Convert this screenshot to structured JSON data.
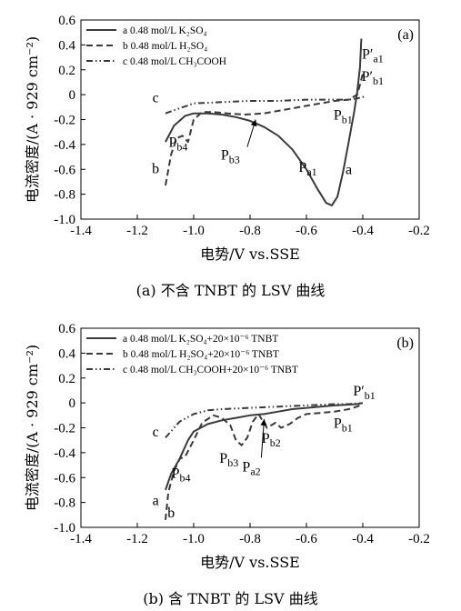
{
  "chart_data": [
    {
      "type": "line",
      "panel_label": "(a)",
      "caption": "(a) 不含 TNBT 的 LSV 曲线",
      "xlabel": "电势/V vs.SSE",
      "ylabel": "电流密度/(A · 929 cm⁻²)",
      "xlim": [
        -1.4,
        -0.2
      ],
      "ylim": [
        -1.0,
        0.6
      ],
      "xticks": [
        "-1.4",
        "-1.2",
        "-1.0",
        "-0.8",
        "-0.6",
        "-0.4",
        "-0.2"
      ],
      "yticks": [
        "-1.0",
        "-0.8",
        "-0.6",
        "-0.4",
        "-0.2",
        "0",
        "0.2",
        "0.4",
        "0.6"
      ],
      "series": [
        {
          "id": "a",
          "name": "a 0.48 mol/L K₂SO₄",
          "style": "solid",
          "x": [
            -1.1,
            -1.07,
            -1.03,
            -1.0,
            -0.95,
            -0.9,
            -0.85,
            -0.8,
            -0.75,
            -0.7,
            -0.65,
            -0.6,
            -0.56,
            -0.53,
            -0.51,
            -0.49,
            -0.47,
            -0.45,
            -0.43,
            -0.42,
            -0.41,
            -0.405
          ],
          "y": [
            -0.38,
            -0.25,
            -0.17,
            -0.15,
            -0.15,
            -0.16,
            -0.18,
            -0.21,
            -0.26,
            -0.33,
            -0.44,
            -0.6,
            -0.76,
            -0.87,
            -0.89,
            -0.82,
            -0.62,
            -0.38,
            -0.13,
            0.02,
            0.22,
            0.45
          ]
        },
        {
          "id": "b",
          "name": "b 0.48 mol/L H₂SO₄",
          "style": "dashed",
          "x": [
            -1.1,
            -1.08,
            -1.06,
            -1.04,
            -1.02,
            -1.0,
            -0.97,
            -0.93,
            -0.88,
            -0.82,
            -0.75,
            -0.7,
            -0.65,
            -0.6,
            -0.55,
            -0.5,
            -0.45,
            -0.42,
            -0.41,
            -0.4
          ],
          "y": [
            -0.73,
            -0.48,
            -0.35,
            -0.33,
            -0.38,
            -0.2,
            -0.14,
            -0.14,
            -0.15,
            -0.16,
            -0.15,
            -0.13,
            -0.11,
            -0.09,
            -0.07,
            -0.05,
            -0.04,
            0.0,
            0.08,
            0.17
          ]
        },
        {
          "id": "c",
          "name": "c 0.48 mol/L CH₃COOH",
          "style": "dashdot",
          "x": [
            -1.1,
            -1.05,
            -1.0,
            -0.9,
            -0.8,
            -0.7,
            -0.6,
            -0.5,
            -0.45,
            -0.42,
            -0.4,
            -0.39
          ],
          "y": [
            -0.15,
            -0.11,
            -0.07,
            -0.06,
            -0.05,
            -0.05,
            -0.04,
            -0.04,
            -0.04,
            -0.03,
            -0.02,
            0.0
          ]
        }
      ],
      "annotations": [
        {
          "base": "P",
          "sub": "a1",
          "prime": true,
          "x": -0.365,
          "y": 0.29
        },
        {
          "base": "P",
          "sub": "b1",
          "prime": true,
          "x": -0.365,
          "y": 0.11
        },
        {
          "base": "P",
          "sub": "b1",
          "prime": false,
          "x": -0.47,
          "y": -0.2
        },
        {
          "base": "P",
          "sub": "b4",
          "prime": false,
          "x": -1.055,
          "y": -0.42
        },
        {
          "base": "P",
          "sub": "b3",
          "prime": false,
          "x": -0.87,
          "y": -0.52
        },
        {
          "base": "P",
          "sub": "a1",
          "prime": false,
          "x": -0.595,
          "y": -0.62
        },
        {
          "base": "a",
          "sub": "",
          "prime": false,
          "x": -0.45,
          "y": -0.64
        },
        {
          "base": "b",
          "sub": "",
          "prime": false,
          "x": -1.135,
          "y": -0.63
        },
        {
          "base": "c",
          "sub": "",
          "prime": false,
          "x": -1.135,
          "y": -0.06
        }
      ],
      "arrows": [
        {
          "from": [
            -0.81,
            -0.42
          ],
          "to": [
            -0.78,
            -0.2
          ]
        }
      ]
    },
    {
      "type": "line",
      "panel_label": "(b)",
      "caption": "(b) 含 TNBT 的 LSV 曲线",
      "xlabel": "电势/V vs.SSE",
      "ylabel": "电流密度/(A · 929 cm⁻²)",
      "xlim": [
        -1.4,
        -0.2
      ],
      "ylim": [
        -1.0,
        0.6
      ],
      "xticks": [
        "-1.4",
        "-1.2",
        "-1.0",
        "-0.8",
        "-0.6",
        "-0.4",
        "-0.2"
      ],
      "yticks": [
        "-1.0",
        "-0.8",
        "-0.6",
        "-0.4",
        "-0.2",
        "0",
        "0.2",
        "0.4",
        "0.6"
      ],
      "series": [
        {
          "id": "a",
          "name": "a 0.48 mol/L K₂SO₄+20×10⁻⁶ TNBT",
          "style": "solid",
          "x": [
            -1.1,
            -1.08,
            -1.05,
            -1.02,
            -1.0,
            -0.95,
            -0.9,
            -0.85,
            -0.8,
            -0.75,
            -0.7,
            -0.65,
            -0.6,
            -0.5,
            -0.42,
            -0.4
          ],
          "y": [
            -0.7,
            -0.57,
            -0.45,
            -0.3,
            -0.23,
            -0.17,
            -0.14,
            -0.12,
            -0.1,
            -0.09,
            -0.07,
            -0.05,
            -0.04,
            -0.02,
            -0.01,
            0.0
          ]
        },
        {
          "id": "b",
          "name": "b 0.48 mol/L H₂SO₄+20×10⁻⁶ TNBT",
          "style": "dashed",
          "x": [
            -1.1,
            -1.09,
            -1.07,
            -1.05,
            -1.03,
            -1.0,
            -0.97,
            -0.93,
            -0.9,
            -0.87,
            -0.85,
            -0.83,
            -0.81,
            -0.79,
            -0.77,
            -0.74,
            -0.71,
            -0.69,
            -0.66,
            -0.63,
            -0.6,
            -0.55,
            -0.5,
            -0.45,
            -0.42,
            -0.4
          ],
          "y": [
            -0.94,
            -0.72,
            -0.55,
            -0.45,
            -0.43,
            -0.3,
            -0.16,
            -0.1,
            -0.12,
            -0.18,
            -0.3,
            -0.34,
            -0.28,
            -0.15,
            -0.09,
            -0.2,
            -0.16,
            -0.2,
            -0.17,
            -0.12,
            -0.09,
            -0.08,
            -0.07,
            -0.05,
            -0.03,
            -0.01
          ]
        },
        {
          "id": "c",
          "name": "c 0.48 mol/L CH₃COOH+20×10⁻⁶ TNBT",
          "style": "dashdot",
          "x": [
            -1.1,
            -1.05,
            -1.0,
            -0.95,
            -0.9,
            -0.8,
            -0.7,
            -0.6,
            -0.5,
            -0.45,
            -0.4
          ],
          "y": [
            -0.28,
            -0.15,
            -0.09,
            -0.06,
            -0.05,
            -0.04,
            -0.03,
            -0.02,
            -0.01,
            -0.01,
            0.0
          ]
        }
      ],
      "annotations": [
        {
          "base": "P",
          "sub": "b1",
          "prime": true,
          "x": -0.395,
          "y": 0.06
        },
        {
          "base": "P",
          "sub": "b1",
          "prime": false,
          "x": -0.47,
          "y": -0.2
        },
        {
          "base": "P",
          "sub": "b2",
          "prime": false,
          "x": -0.725,
          "y": -0.32
        },
        {
          "base": "P",
          "sub": "b3",
          "prime": false,
          "x": -0.875,
          "y": -0.48
        },
        {
          "base": "P",
          "sub": "a2",
          "prime": false,
          "x": -0.795,
          "y": -0.55
        },
        {
          "base": "P",
          "sub": "b4",
          "prime": false,
          "x": -1.045,
          "y": -0.6
        },
        {
          "base": "a",
          "sub": "",
          "prime": false,
          "x": -1.135,
          "y": -0.82
        },
        {
          "base": "b",
          "sub": "",
          "prime": false,
          "x": -1.08,
          "y": -0.92
        },
        {
          "base": "c",
          "sub": "",
          "prime": false,
          "x": -1.135,
          "y": -0.27
        }
      ],
      "arrows": [
        {
          "from": [
            -0.76,
            -0.44
          ],
          "to": [
            -0.75,
            -0.13
          ]
        }
      ]
    }
  ]
}
